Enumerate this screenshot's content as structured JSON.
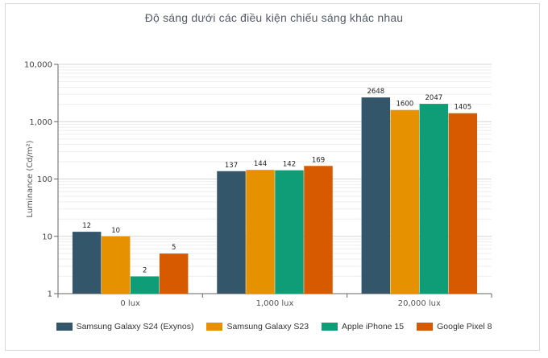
{
  "chart_data": {
    "type": "bar",
    "title": "Độ sáng dưới các điều kiện chiếu sáng khác nhau",
    "ylabel": "Luminance (Cd/m²)",
    "xlabel": "",
    "yscale": "log",
    "ylim": [
      1,
      10000
    ],
    "yticks": [
      "1",
      "10",
      "100",
      "1,000",
      "10,000"
    ],
    "categories": [
      "0 lux",
      "1,000 lux",
      "20,000 lux"
    ],
    "series": [
      {
        "name": "Samsung Galaxy S24 (Exynos)",
        "color": "#34566b",
        "values": [
          12,
          137,
          2648
        ]
      },
      {
        "name": "Samsung Galaxy S23",
        "color": "#e59100",
        "values": [
          10,
          144,
          1600
        ]
      },
      {
        "name": "Apple iPhone 15",
        "color": "#0f9d78",
        "values": [
          2,
          142,
          2047
        ]
      },
      {
        "name": "Google Pixel 8",
        "color": "#d75a00",
        "values": [
          5,
          169,
          1405
        ]
      }
    ],
    "grid": true,
    "legend": "bottom"
  }
}
